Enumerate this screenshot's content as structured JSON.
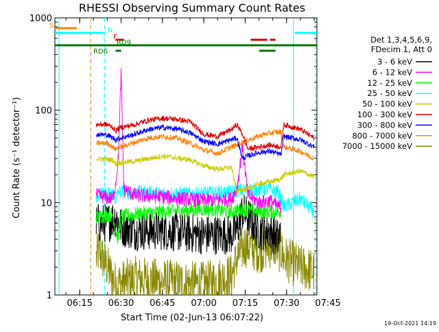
{
  "chart_data": {
    "type": "line",
    "title": "RHESSI Observing Summary Count Rates",
    "xlabel": "Start Time (02-Jun-13 06:07:22)",
    "ylabel": "Count Rate (s⁻¹ detector⁻¹)",
    "y_scale": "log",
    "ylim": [
      1,
      1000
    ],
    "xlim_minutes": [
      6.0,
      101.0
    ],
    "x_ticks": [
      {
        "label": "06:15",
        "minutes": 15
      },
      {
        "label": "06:30",
        "minutes": 30
      },
      {
        "label": "06:45",
        "minutes": 45
      },
      {
        "label": "07:00",
        "minutes": 60
      },
      {
        "label": "07:15",
        "minutes": 75
      },
      {
        "label": "07:30",
        "minutes": 90
      },
      {
        "label": "07:45",
        "minutes": 105
      }
    ],
    "y_ticks": [
      {
        "label": "1",
        "value": 1
      },
      {
        "label": "10",
        "value": 10
      },
      {
        "label": "100",
        "value": 100
      },
      {
        "label": "1000",
        "value": 1000
      }
    ],
    "legend_header": [
      "Det 1,3,4,5,6,9,",
      "FDecim 1, Att 0"
    ],
    "series": [
      {
        "name": "3 - 6 keV",
        "color": "#000000",
        "points": [
          [
            21,
            6
          ],
          [
            25,
            6
          ],
          [
            28,
            7
          ],
          [
            30,
            5.5
          ],
          [
            35,
            5
          ],
          [
            45,
            5
          ],
          [
            60,
            4.5
          ],
          [
            70,
            4.5
          ],
          [
            72,
            5
          ],
          [
            74,
            8
          ],
          [
            76,
            7
          ],
          [
            80,
            5
          ],
          [
            84,
            5
          ],
          [
            87,
            4
          ],
          [
            88,
            5
          ]
        ]
      },
      {
        "name": "6 - 12 keV",
        "color": "#ff00ff",
        "points": [
          [
            21,
            12
          ],
          [
            27,
            11
          ],
          [
            28,
            16
          ],
          [
            29,
            30
          ],
          [
            30,
            250
          ],
          [
            31,
            14
          ],
          [
            35,
            12
          ],
          [
            45,
            11.5
          ],
          [
            60,
            10.5
          ],
          [
            70,
            11
          ],
          [
            72,
            14
          ],
          [
            74,
            40
          ],
          [
            76,
            12
          ],
          [
            80,
            10
          ],
          [
            84,
            10.5
          ],
          [
            87,
            9
          ],
          [
            88,
            9
          ]
        ]
      },
      {
        "name": "12 - 25 keV",
        "color": "#00ff00",
        "points": [
          [
            21,
            7
          ],
          [
            27,
            7.5
          ],
          [
            28,
            5
          ],
          [
            29,
            4
          ],
          [
            30,
            7
          ],
          [
            35,
            7.5
          ],
          [
            45,
            8
          ],
          [
            60,
            8.5
          ],
          [
            70,
            8
          ],
          [
            74,
            8.5
          ],
          [
            80,
            8
          ],
          [
            84,
            8
          ],
          [
            87,
            8
          ],
          [
            88,
            8
          ]
        ]
      },
      {
        "name": "25 - 50 keV",
        "color": "#00ffff",
        "points": [
          [
            21,
            12
          ],
          [
            27,
            12.5
          ],
          [
            28,
            11
          ],
          [
            29,
            13
          ],
          [
            35,
            13
          ],
          [
            45,
            12.5
          ],
          [
            60,
            12.5
          ],
          [
            70,
            13
          ],
          [
            72,
            13.5
          ],
          [
            80,
            14
          ],
          [
            84,
            14
          ],
          [
            87,
            13
          ],
          [
            89,
            9
          ],
          [
            95,
            11
          ],
          [
            100,
            8
          ]
        ]
      },
      {
        "name": "50 - 100 keV",
        "color": "#cccc00",
        "points": [
          [
            21,
            30
          ],
          [
            27,
            29
          ],
          [
            28,
            26
          ],
          [
            29,
            27
          ],
          [
            35,
            28
          ],
          [
            45,
            32
          ],
          [
            55,
            29
          ],
          [
            60,
            25
          ],
          [
            65,
            23
          ],
          [
            70,
            24
          ],
          [
            72,
            13
          ],
          [
            74,
            14
          ],
          [
            76,
            14
          ],
          [
            80,
            16
          ],
          [
            85,
            17
          ],
          [
            88,
            18
          ],
          [
            89,
            20
          ],
          [
            95,
            22
          ],
          [
            100,
            19
          ]
        ]
      },
      {
        "name": "100 - 300 keV",
        "color": "#dd0000",
        "points": [
          [
            21,
            70
          ],
          [
            25,
            70
          ],
          [
            27,
            65
          ],
          [
            28,
            60
          ],
          [
            29,
            63
          ],
          [
            30,
            65
          ],
          [
            35,
            70
          ],
          [
            40,
            78
          ],
          [
            45,
            82
          ],
          [
            50,
            80
          ],
          [
            55,
            75
          ],
          [
            60,
            55
          ],
          [
            65,
            52
          ],
          [
            70,
            62
          ],
          [
            72,
            70
          ],
          [
            74,
            55
          ],
          [
            76,
            38
          ],
          [
            80,
            40
          ],
          [
            84,
            42
          ],
          [
            88,
            40
          ],
          [
            89,
            70
          ],
          [
            95,
            62
          ],
          [
            100,
            50
          ]
        ]
      },
      {
        "name": "300 - 800 keV",
        "color": "#0000ff",
        "points": [
          [
            21,
            55
          ],
          [
            25,
            54
          ],
          [
            27,
            50
          ],
          [
            28,
            48
          ],
          [
            30,
            50
          ],
          [
            35,
            55
          ],
          [
            40,
            62
          ],
          [
            45,
            65
          ],
          [
            50,
            63
          ],
          [
            55,
            57
          ],
          [
            60,
            46
          ],
          [
            65,
            43
          ],
          [
            70,
            48
          ],
          [
            72,
            50
          ],
          [
            74,
            30
          ],
          [
            76,
            32
          ],
          [
            80,
            35
          ],
          [
            84,
            36
          ],
          [
            88,
            33
          ],
          [
            89,
            52
          ],
          [
            95,
            48
          ],
          [
            100,
            40
          ]
        ]
      },
      {
        "name": "800 - 7000 keV",
        "color": "#ff7f00",
        "points": [
          [
            21,
            44
          ],
          [
            25,
            44
          ],
          [
            27,
            40
          ],
          [
            28,
            38
          ],
          [
            30,
            40
          ],
          [
            35,
            45
          ],
          [
            40,
            50
          ],
          [
            45,
            52
          ],
          [
            50,
            50
          ],
          [
            55,
            44
          ],
          [
            60,
            37
          ],
          [
            65,
            34
          ],
          [
            70,
            40
          ],
          [
            72,
            42
          ],
          [
            74,
            45
          ],
          [
            78,
            50
          ],
          [
            82,
            55
          ],
          [
            86,
            58
          ],
          [
            88,
            58
          ],
          [
            89,
            40
          ],
          [
            95,
            36
          ],
          [
            100,
            30
          ]
        ]
      },
      {
        "name": "7000 - 15000 keV",
        "color": "#888800",
        "points": [
          [
            21,
            2.5
          ],
          [
            22,
            3
          ],
          [
            27,
            1.5
          ],
          [
            28,
            1.3
          ],
          [
            35,
            1.5
          ],
          [
            45,
            1.4
          ],
          [
            60,
            1.3
          ],
          [
            70,
            1.6
          ],
          [
            72,
            2.5
          ],
          [
            75,
            3.5
          ],
          [
            80,
            3
          ],
          [
            85,
            3.5
          ],
          [
            88,
            3
          ],
          [
            89,
            2.5
          ],
          [
            95,
            2
          ],
          [
            100,
            1.8
          ]
        ]
      }
    ],
    "flags": [
      {
        "label": "S",
        "color": "#ff7f00",
        "segments": [
          [
            6,
            14
          ]
        ]
      },
      {
        "label": "N",
        "color": "#00ffff",
        "segments": [
          [
            6,
            24
          ],
          [
            93,
            101
          ]
        ]
      },
      {
        "label": "F",
        "color": "#dd0000",
        "segments": [
          [
            28,
            31
          ],
          [
            77,
            83
          ],
          [
            84,
            86
          ]
        ]
      },
      {
        "label": "RD9",
        "color": "#007700",
        "segments": [
          [
            6,
            101
          ]
        ]
      },
      {
        "label": "RD6",
        "color": "#007700",
        "segments": [
          [
            28,
            30
          ],
          [
            80,
            86
          ]
        ]
      }
    ],
    "vlines": [
      {
        "minutes": 7.5,
        "color": "#00ffff",
        "style": "solid"
      },
      {
        "minutes": 19,
        "color": "#ff7f00",
        "style": "dashed"
      },
      {
        "minutes": 24,
        "color": "#00ffff",
        "style": "dashed"
      },
      {
        "minutes": 92.5,
        "color": "#00ffff",
        "style": "solid"
      },
      {
        "minutes": 100.5,
        "color": "#00ffff",
        "style": "dashed"
      }
    ],
    "grid": false,
    "legend_position": "right"
  },
  "footer": {
    "timestamp": "19-Oct-2021 14:19"
  }
}
